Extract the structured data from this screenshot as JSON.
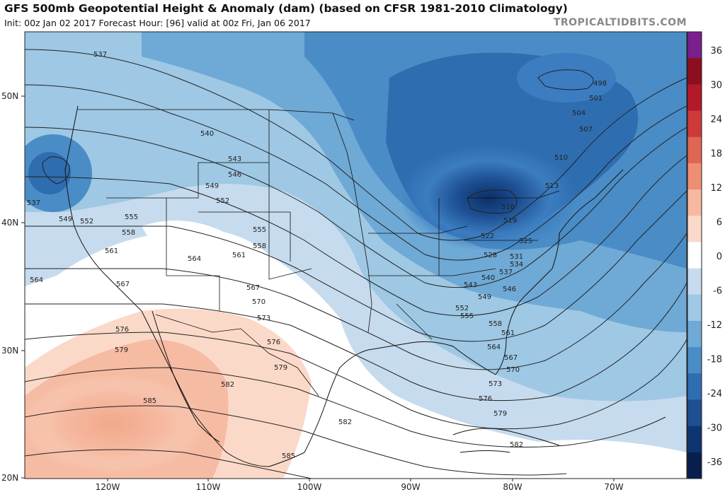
{
  "header": {
    "title": "GFS 500mb Geopotential Height & Anomaly (dam) (based on CFSR 1981-2010 Climatology)",
    "subtitle": "Init: 00z Jan 02 2017   Forecast Hour: [96]   valid at 00z Fri, Jan 06 2017",
    "brand": "TROPICALTIDBITS.COM"
  },
  "axes": {
    "latitudes": [
      "50N",
      "40N",
      "30N",
      "20N"
    ],
    "longitudes": [
      "120W",
      "110W",
      "100W",
      "90W",
      "80W",
      "70W"
    ]
  },
  "colorbar": {
    "ticks": [
      "36",
      "30",
      "24",
      "18",
      "12",
      "6",
      "0",
      "-6",
      "-12",
      "-18",
      "-24",
      "-30",
      "-36"
    ],
    "colors": [
      "#7a1f8e",
      "#8b0f1e",
      "#b3192a",
      "#cc3a3a",
      "#df6652",
      "#ee8f73",
      "#f6b9a0",
      "#fbd9c8",
      "#ffffff",
      "#c6dbee",
      "#9ec8e4",
      "#6fa9d6",
      "#4a8cc6",
      "#2f6db1",
      "#1d4f92",
      "#0f3570",
      "#081f4e"
    ]
  },
  "contour_labels": [
    "498",
    "501",
    "504",
    "507",
    "510",
    "513",
    "516",
    "519",
    "522",
    "525",
    "528",
    "531",
    "534",
    "537",
    "540",
    "543",
    "546",
    "549",
    "552",
    "555",
    "558",
    "561",
    "564",
    "567",
    "570",
    "573",
    "576",
    "579",
    "582",
    "585"
  ]
}
